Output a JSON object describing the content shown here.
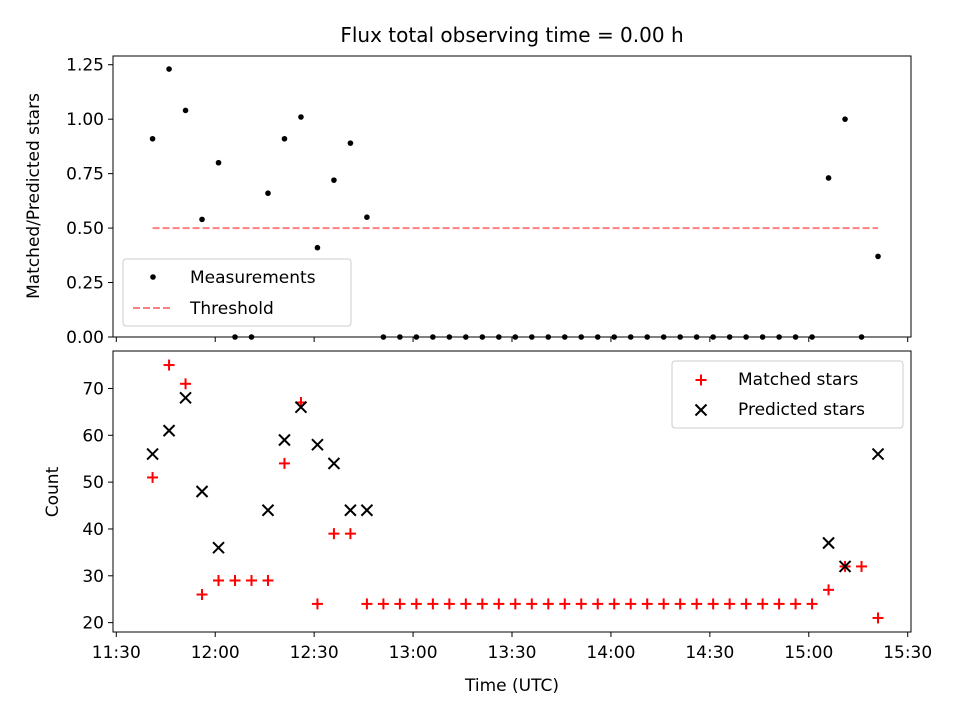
{
  "chart_data": [
    {
      "type": "scatter",
      "title": "Flux total observing time = 0.00 h",
      "xlabel": "",
      "ylabel": "Matched/Predicted stars",
      "ylim": [
        0,
        1.29
      ],
      "yticks": [
        "0.00",
        "0.25",
        "0.50",
        "0.75",
        "1.00",
        "1.25"
      ],
      "legend_position": "lower-left",
      "series": [
        {
          "name": "Measurements",
          "marker": "dot",
          "color": "#000000",
          "points": [
            [
              "11:41",
              0.91
            ],
            [
              "11:46",
              1.23
            ],
            [
              "11:51",
              1.04
            ],
            [
              "11:56",
              0.54
            ],
            [
              "12:01",
              0.8
            ],
            [
              "12:06",
              0.0
            ],
            [
              "12:11",
              0.0
            ],
            [
              "12:16",
              0.66
            ],
            [
              "12:21",
              0.91
            ],
            [
              "12:26",
              1.01
            ],
            [
              "12:31",
              0.41
            ],
            [
              "12:36",
              0.72
            ],
            [
              "12:41",
              0.89
            ],
            [
              "12:46",
              0.55
            ],
            [
              "12:51",
              0.0
            ],
            [
              "12:56",
              0.0
            ],
            [
              "13:01",
              0.0
            ],
            [
              "13:06",
              0.0
            ],
            [
              "13:11",
              0.0
            ],
            [
              "13:16",
              0.0
            ],
            [
              "13:21",
              0.0
            ],
            [
              "13:26",
              0.0
            ],
            [
              "13:31",
              0.0
            ],
            [
              "13:36",
              0.0
            ],
            [
              "13:41",
              0.0
            ],
            [
              "13:46",
              0.0
            ],
            [
              "13:51",
              0.0
            ],
            [
              "13:56",
              0.0
            ],
            [
              "14:01",
              0.0
            ],
            [
              "14:06",
              0.0
            ],
            [
              "14:11",
              0.0
            ],
            [
              "14:16",
              0.0
            ],
            [
              "14:21",
              0.0
            ],
            [
              "14:26",
              0.0
            ],
            [
              "14:31",
              0.0
            ],
            [
              "14:36",
              0.0
            ],
            [
              "14:41",
              0.0
            ],
            [
              "14:46",
              0.0
            ],
            [
              "14:51",
              0.0
            ],
            [
              "14:56",
              0.0
            ],
            [
              "15:01",
              0.0
            ],
            [
              "15:06",
              0.73
            ],
            [
              "15:11",
              1.0
            ],
            [
              "15:16",
              0.0
            ],
            [
              "15:21",
              0.37
            ]
          ]
        },
        {
          "name": "Threshold",
          "marker": "dashed-line",
          "color": "#ff8080",
          "points": [
            [
              "11:41",
              0.5
            ],
            [
              "15:21",
              0.5
            ]
          ]
        }
      ]
    },
    {
      "type": "scatter",
      "title": "",
      "xlabel": "Time (UTC)",
      "ylabel": "Count",
      "ylim": [
        18,
        78
      ],
      "yticks": [
        "20",
        "30",
        "40",
        "50",
        "60",
        "70"
      ],
      "xlim": [
        "11:29",
        "15:31"
      ],
      "xticks": [
        "11:30",
        "12:00",
        "12:30",
        "13:00",
        "13:30",
        "14:00",
        "14:30",
        "15:00",
        "15:30"
      ],
      "legend_position": "upper-right",
      "series": [
        {
          "name": "Matched stars",
          "marker": "plus",
          "color": "#ff0000",
          "points": [
            [
              "11:41",
              51
            ],
            [
              "11:46",
              75
            ],
            [
              "11:51",
              71
            ],
            [
              "11:56",
              26
            ],
            [
              "12:01",
              29
            ],
            [
              "12:06",
              29
            ],
            [
              "12:11",
              29
            ],
            [
              "12:16",
              29
            ],
            [
              "12:21",
              54
            ],
            [
              "12:26",
              67
            ],
            [
              "12:31",
              24
            ],
            [
              "12:36",
              39
            ],
            [
              "12:41",
              39
            ],
            [
              "12:46",
              24
            ],
            [
              "12:51",
              24
            ],
            [
              "12:56",
              24
            ],
            [
              "13:01",
              24
            ],
            [
              "13:06",
              24
            ],
            [
              "13:11",
              24
            ],
            [
              "13:16",
              24
            ],
            [
              "13:21",
              24
            ],
            [
              "13:26",
              24
            ],
            [
              "13:31",
              24
            ],
            [
              "13:36",
              24
            ],
            [
              "13:41",
              24
            ],
            [
              "13:46",
              24
            ],
            [
              "13:51",
              24
            ],
            [
              "13:56",
              24
            ],
            [
              "14:01",
              24
            ],
            [
              "14:06",
              24
            ],
            [
              "14:11",
              24
            ],
            [
              "14:16",
              24
            ],
            [
              "14:21",
              24
            ],
            [
              "14:26",
              24
            ],
            [
              "14:31",
              24
            ],
            [
              "14:36",
              24
            ],
            [
              "14:41",
              24
            ],
            [
              "14:46",
              24
            ],
            [
              "14:51",
              24
            ],
            [
              "14:56",
              24
            ],
            [
              "15:01",
              24
            ],
            [
              "15:06",
              27
            ],
            [
              "15:11",
              32
            ],
            [
              "15:16",
              32
            ],
            [
              "15:21",
              21
            ]
          ]
        },
        {
          "name": "Predicted stars",
          "marker": "x",
          "color": "#000000",
          "points": [
            [
              "11:41",
              56
            ],
            [
              "11:46",
              61
            ],
            [
              "11:51",
              68
            ],
            [
              "11:56",
              48
            ],
            [
              "12:01",
              36
            ],
            [
              "12:16",
              44
            ],
            [
              "12:21",
              59
            ],
            [
              "12:26",
              66
            ],
            [
              "12:31",
              58
            ],
            [
              "12:36",
              54
            ],
            [
              "12:41",
              44
            ],
            [
              "12:46",
              44
            ],
            [
              "15:06",
              37
            ],
            [
              "15:11",
              32
            ],
            [
              "15:21",
              56
            ]
          ]
        }
      ]
    }
  ]
}
